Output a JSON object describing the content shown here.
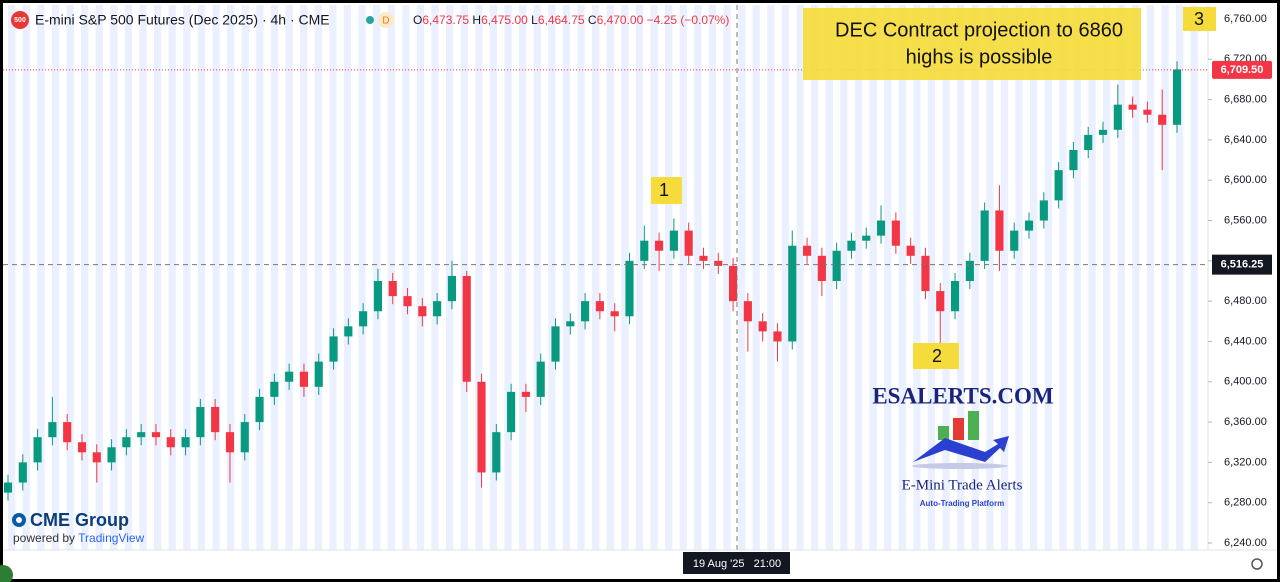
{
  "chart_data": {
    "type": "candlestick",
    "title": "E-mini S&P 500 Futures (Dec 2025) · 4h · CME",
    "symbol_badge": "500",
    "status_badge": "D",
    "ohlc": [
      {
        "label": "O",
        "value": "6,473.75"
      },
      {
        "label": "H",
        "value": "6,475.00"
      },
      {
        "label": "L",
        "value": "6,464.75"
      },
      {
        "label": "C",
        "value": "6,470.00"
      }
    ],
    "change": "−4.25 (−0.07%)",
    "up_color": "#089981",
    "down_color": "#f23645",
    "open": [
      6290,
      6300,
      6320,
      6345,
      6360,
      6340,
      6330,
      6320,
      6335,
      6345,
      6350,
      6345,
      6335,
      6345,
      6375,
      6350,
      6330,
      6360,
      6385,
      6400,
      6410,
      6395,
      6420,
      6445,
      6455,
      6470,
      6500,
      6485,
      6475,
      6465,
      6480,
      6505,
      6400,
      6310,
      6350,
      6390,
      6385,
      6420,
      6455,
      6460,
      6480,
      6470,
      6465,
      6520,
      6540,
      6530,
      6550,
      6525,
      6520,
      6515,
      6480,
      6460,
      6450,
      6440,
      6535,
      6525,
      6500,
      6530,
      6540,
      6545,
      6560,
      6535,
      6525,
      6490,
      6470,
      6500,
      6520,
      6570,
      6530,
      6550,
      6560,
      6580,
      6610,
      6630,
      6645,
      6650,
      6675,
      6670,
      6665,
      6655
    ],
    "high": [
      6308,
      6328,
      6353,
      6385,
      6368,
      6348,
      6338,
      6343,
      6353,
      6358,
      6358,
      6353,
      6353,
      6383,
      6383,
      6358,
      6368,
      6393,
      6408,
      6418,
      6418,
      6428,
      6453,
      6463,
      6478,
      6512,
      6508,
      6493,
      6483,
      6488,
      6520,
      6510,
      6408,
      6358,
      6398,
      6398,
      6428,
      6463,
      6468,
      6488,
      6488,
      6478,
      6528,
      6555,
      6548,
      6562,
      6558,
      6533,
      6528,
      6523,
      6488,
      6468,
      6458,
      6550,
      6543,
      6533,
      6538,
      6548,
      6553,
      6575,
      6568,
      6543,
      6533,
      6498,
      6508,
      6528,
      6578,
      6595,
      6558,
      6568,
      6588,
      6618,
      6638,
      6653,
      6658,
      6695,
      6683,
      6678,
      6690,
      6718
    ],
    "low": [
      6282,
      6292,
      6312,
      6337,
      6332,
      6322,
      6300,
      6312,
      6327,
      6337,
      6337,
      6327,
      6327,
      6337,
      6342,
      6300,
      6322,
      6352,
      6377,
      6392,
      6385,
      6387,
      6412,
      6437,
      6447,
      6462,
      6477,
      6467,
      6455,
      6457,
      6472,
      6390,
      6295,
      6302,
      6342,
      6370,
      6377,
      6412,
      6447,
      6452,
      6462,
      6450,
      6457,
      6512,
      6510,
      6522,
      6517,
      6512,
      6507,
      6470,
      6430,
      6440,
      6420,
      6432,
      6517,
      6485,
      6492,
      6522,
      6532,
      6537,
      6527,
      6517,
      6482,
      6430,
      6462,
      6492,
      6512,
      6510,
      6522,
      6542,
      6552,
      6572,
      6602,
      6622,
      6637,
      6642,
      6662,
      6657,
      6610,
      6647
    ],
    "close": [
      6300,
      6320,
      6345,
      6360,
      6340,
      6330,
      6320,
      6335,
      6345,
      6350,
      6345,
      6335,
      6345,
      6375,
      6350,
      6330,
      6360,
      6385,
      6400,
      6410,
      6395,
      6420,
      6445,
      6455,
      6470,
      6500,
      6485,
      6475,
      6465,
      6480,
      6505,
      6400,
      6310,
      6350,
      6390,
      6385,
      6420,
      6455,
      6460,
      6480,
      6470,
      6465,
      6520,
      6540,
      6530,
      6550,
      6525,
      6520,
      6515,
      6480,
      6460,
      6450,
      6440,
      6535,
      6525,
      6500,
      6530,
      6540,
      6545,
      6560,
      6535,
      6525,
      6490,
      6470,
      6500,
      6520,
      6570,
      6530,
      6550,
      6560,
      6580,
      6610,
      6630,
      6645,
      6650,
      6675,
      6670,
      6665,
      6655,
      6710
    ],
    "ylim": [
      6240,
      6760
    ],
    "yticks": [
      {
        "value": 6240,
        "label": "6,240.00"
      },
      {
        "value": 6280,
        "label": "6,280.00"
      },
      {
        "value": 6320,
        "label": "6,320.00"
      },
      {
        "value": 6360,
        "label": "6,360.00"
      },
      {
        "value": 6400,
        "label": "6,400.00"
      },
      {
        "value": 6440,
        "label": "6,440.00"
      },
      {
        "value": 6480,
        "label": "6,480.00"
      },
      {
        "value": 6520,
        "label": "6,520.00"
      },
      {
        "value": 6560,
        "label": "6,560.00"
      },
      {
        "value": 6600,
        "label": "6,600.00"
      },
      {
        "value": 6640,
        "label": "6,640.00"
      },
      {
        "value": 6680,
        "label": "6,680.00"
      },
      {
        "value": 6720,
        "label": "6,720.00"
      },
      {
        "value": 6760,
        "label": "6,760.00"
      }
    ],
    "last_price": {
      "value": 6709.5,
      "label": "6,709.50"
    },
    "crosshair": {
      "price": {
        "value": 6516.25,
        "label": "6,516.25"
      },
      "time": "19 Aug '25   21:00"
    },
    "annotation": [
      "DEC Contract projection to 6860",
      "highs is possible"
    ],
    "points": [
      "1",
      "2",
      "3"
    ],
    "logo": {
      "site": "ESALERTS.COM",
      "name": "E-Mini Trade Alerts",
      "tagline": "Auto-Trading Platform"
    },
    "branding": {
      "exchange": "CME Group",
      "powered_by": "powered by",
      "platform": "TradingView"
    }
  }
}
